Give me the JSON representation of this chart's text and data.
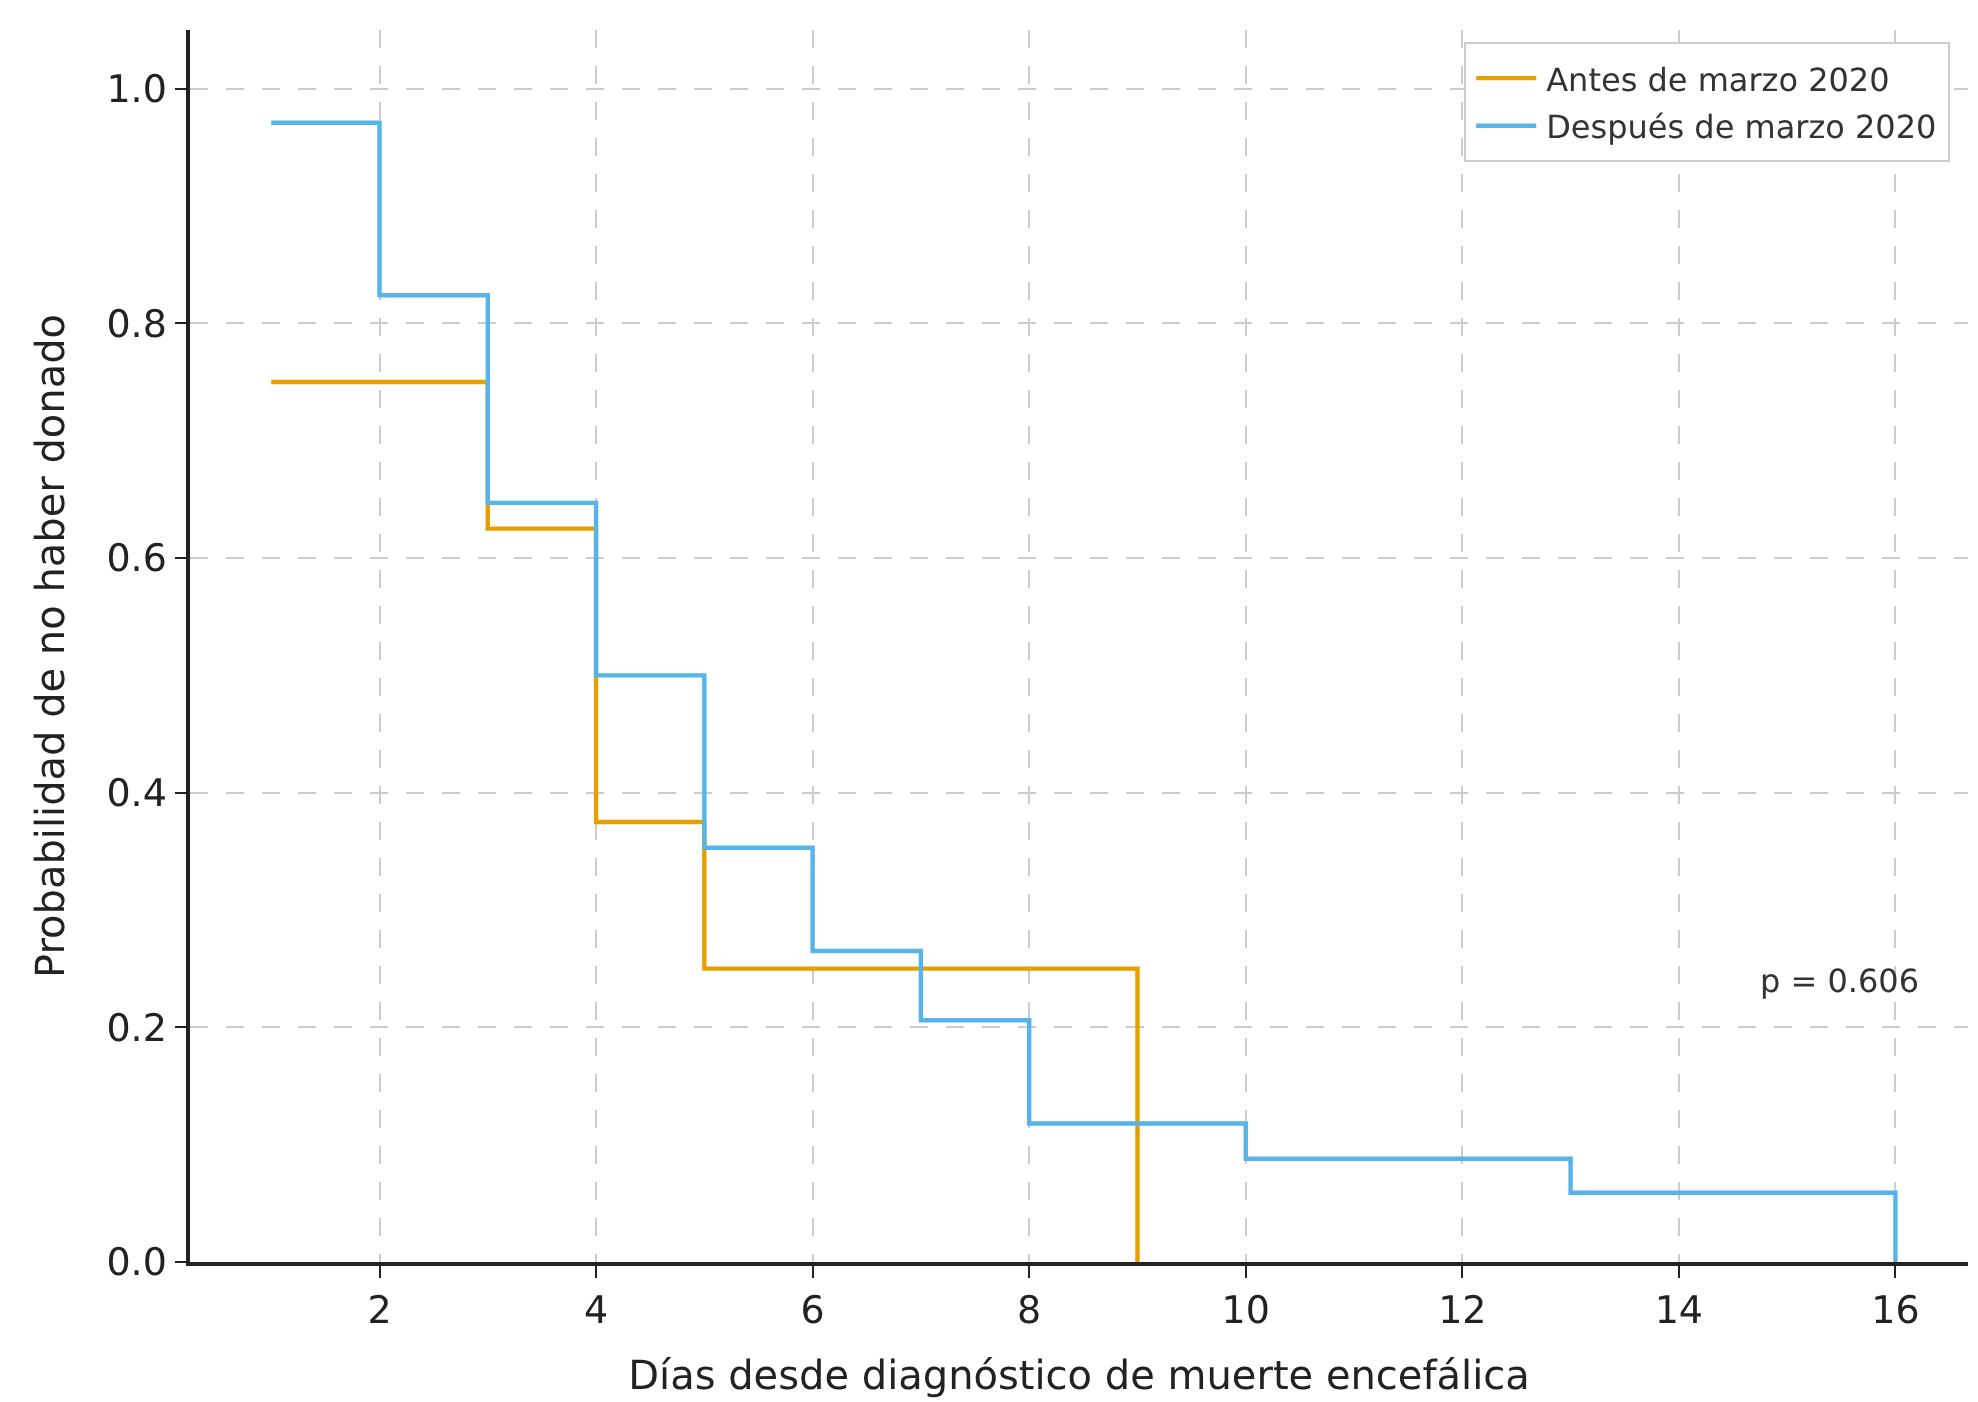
{
  "chart_data": {
    "type": "step",
    "xlabel": "Días desde diagnóstico de muerte encefálica",
    "ylabel": "Probabilidad de no haber donado",
    "series": [
      {
        "name": "Antes de marzo 2020",
        "color": "#e69f00",
        "x": [
          1,
          3,
          4,
          5,
          9
        ],
        "values": [
          0.75,
          0.625,
          0.375,
          0.25,
          0
        ]
      },
      {
        "name": "Después de marzo 2020",
        "color": "#56b4e9",
        "x": [
          1,
          2,
          3,
          4,
          5,
          6,
          7,
          8,
          10,
          13,
          16
        ],
        "values": [
          0.971,
          0.824,
          0.647,
          0.5,
          0.353,
          0.265,
          0.206,
          0.118,
          0.088,
          0.059,
          0
        ]
      }
    ],
    "xlim": [
      0.25,
      16.67
    ],
    "xticks": [
      2,
      4,
      6,
      8,
      10,
      12,
      14,
      16
    ],
    "ylim": [
      0,
      1.05
    ],
    "yticks": [
      {
        "value": 0,
        "label": "0.0"
      },
      {
        "value": 0.2,
        "label": "0.2"
      },
      {
        "value": 0.4,
        "label": "0.4"
      },
      {
        "value": 0.6,
        "label": "0.6"
      },
      {
        "value": 0.8,
        "label": "0.8"
      },
      {
        "value": 1,
        "label": "1.0"
      }
    ],
    "annotations": [
      "p = 0.606"
    ],
    "grid": true,
    "legend": "top right",
    "line_style": "solid"
  }
}
